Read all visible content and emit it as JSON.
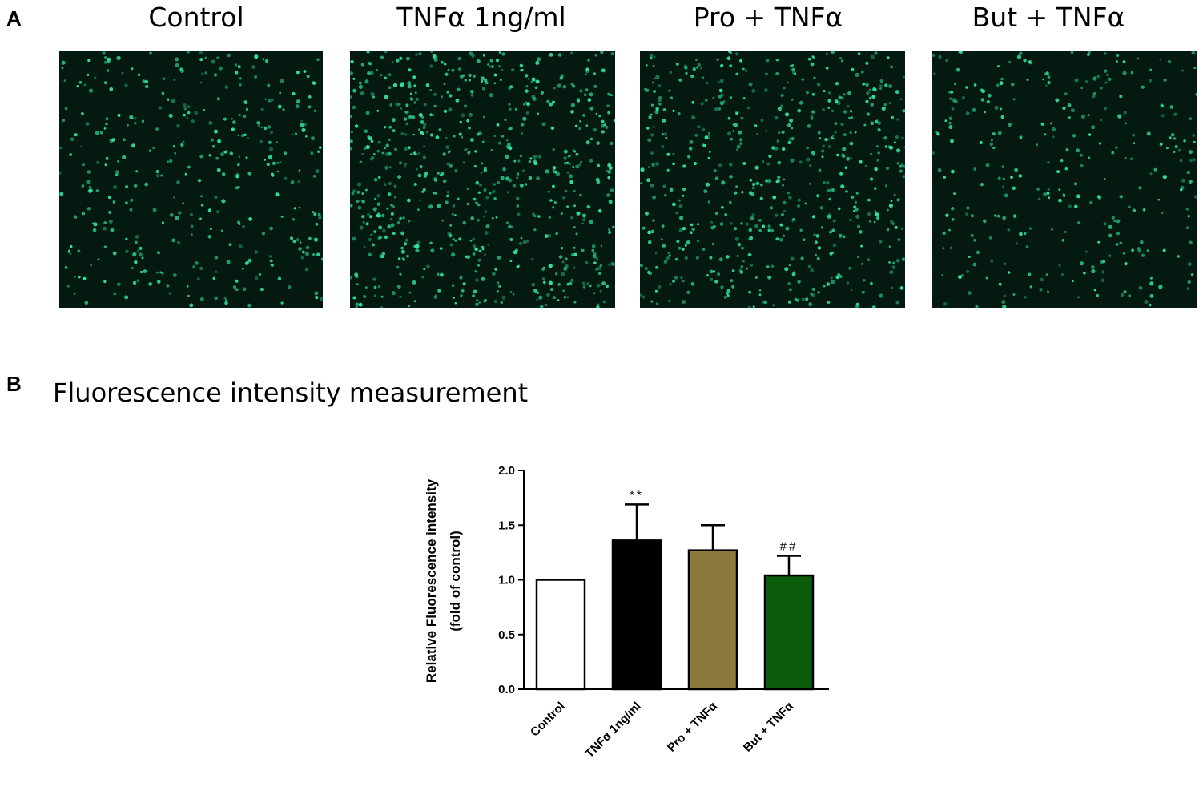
{
  "panel_a": {
    "letter": "A",
    "images": [
      {
        "title": "Control",
        "density": 0.55
      },
      {
        "title": "TNFα 1ng/ml",
        "density": 1.0
      },
      {
        "title": "Pro + TNFα",
        "density": 0.85
      },
      {
        "title": "But + TNFα",
        "density": 0.45
      }
    ],
    "colors": {
      "background": "#041a11",
      "cell": "#2fe3a4"
    }
  },
  "panel_b": {
    "letter": "B",
    "title": "Fluorescence intensity measurement"
  },
  "chart_data": {
    "type": "bar",
    "title": "",
    "xlabel": "",
    "ylabel": "Relative Fluorescence intensity",
    "ylabel2": "(fold of control)",
    "categories": [
      "Control",
      "TNFα 1ng/ml",
      "Pro + TNFα",
      "But + TNFα"
    ],
    "values": [
      1.0,
      1.36,
      1.27,
      1.04
    ],
    "errors": [
      0.0,
      0.33,
      0.23,
      0.18
    ],
    "annotations": [
      "",
      "**",
      "",
      "##"
    ],
    "colors": [
      "#ffffff",
      "#000000",
      "#8b7a3c",
      "#0a5c0a"
    ],
    "ylim": [
      0,
      2.0
    ],
    "yticks": [
      "0.0",
      "0.5",
      "1.0",
      "1.5",
      "2.0"
    ],
    "grid": false,
    "legend": "none"
  }
}
